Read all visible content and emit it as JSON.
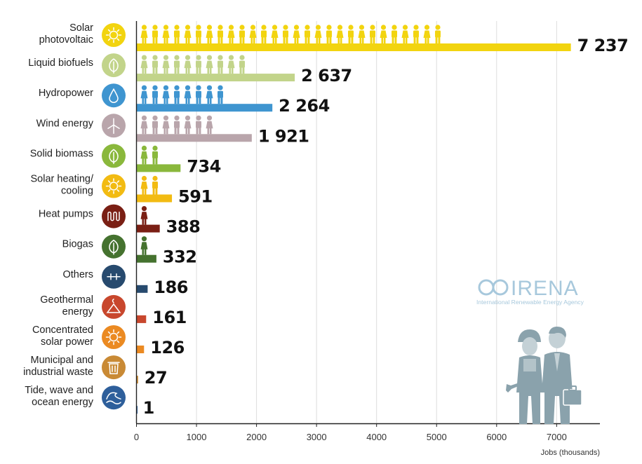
{
  "chart_data": {
    "type": "bar",
    "orientation": "horizontal",
    "title": "",
    "xlabel": "Jobs (thousands)",
    "ylabel": "",
    "xlim": [
      0,
      7700
    ],
    "xticks": [
      0,
      1000,
      2000,
      3000,
      4000,
      5000,
      6000,
      7000
    ],
    "xtick_labels": [
      "0",
      "1000",
      "2000",
      "3000",
      "4000",
      "5000",
      "6000",
      "7000"
    ],
    "grid": "vertical",
    "categories": [
      [
        "Solar",
        "photovoltaic"
      ],
      [
        "Liquid biofuels"
      ],
      [
        "Hydropower"
      ],
      [
        "Wind energy"
      ],
      [
        "Solid biomass"
      ],
      [
        "Solar heating/",
        "cooling"
      ],
      [
        "Heat pumps"
      ],
      [
        "Biogas"
      ],
      [
        "Others"
      ],
      [
        "Geothermal",
        "energy"
      ],
      [
        "Concentrated",
        "solar power"
      ],
      [
        "Municipal and",
        "industrial waste"
      ],
      [
        "Tide, wave and",
        "ocean energy"
      ]
    ],
    "values": [
      7237,
      2637,
      2264,
      1921,
      734,
      591,
      388,
      332,
      186,
      161,
      126,
      27,
      1
    ],
    "value_labels": [
      "7 237",
      "2 637",
      "2 264",
      "1 921",
      "734",
      "591",
      "388",
      "332",
      "186",
      "161",
      "126",
      "27",
      "1"
    ],
    "icons": [
      "sun-icon",
      "leaf-icon",
      "water-drop-icon",
      "wind-turbine-icon",
      "leaf-icon",
      "sun-icon",
      "heat-coil-icon",
      "leaf-icon",
      "plus-minus-icon",
      "geothermal-icon",
      "sun-icon",
      "waste-bin-icon",
      "wave-icon"
    ],
    "colors": [
      "#f2d40f",
      "#c2d48a",
      "#3f95d0",
      "#b9a5ab",
      "#8ab83c",
      "#f2bb12",
      "#7a1f14",
      "#45722f",
      "#274a6e",
      "#c8472d",
      "#eb8a22",
      "#c98a35",
      "#2e5f9b"
    ]
  },
  "logo": {
    "name": "IRENA",
    "subtitle": "International Renewable Energy Agency",
    "color": "#a7c8dc"
  }
}
